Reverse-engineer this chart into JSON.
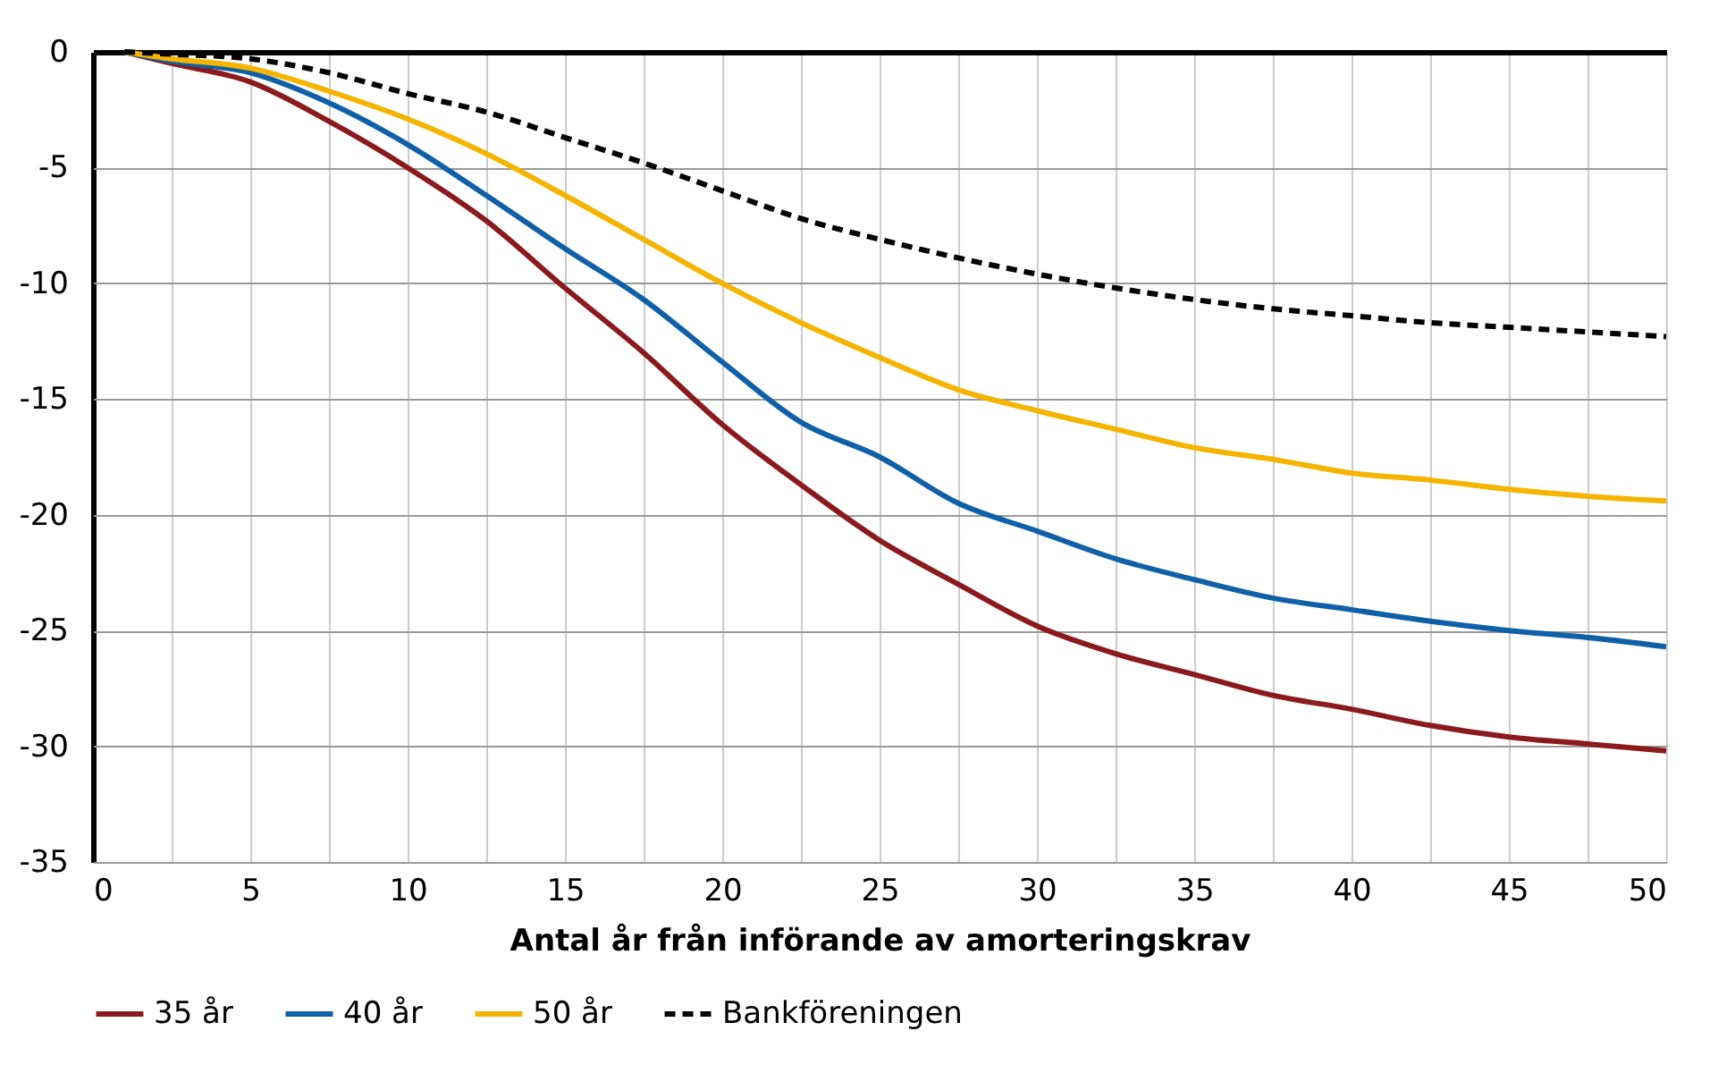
{
  "chart_data": {
    "type": "line",
    "xlabel": "Antal år från införande av amorteringskrav",
    "x": [
      1,
      2.5,
      5,
      7.5,
      10,
      12.5,
      15,
      17.5,
      20,
      22.5,
      25,
      27.5,
      30,
      32.5,
      35,
      37.5,
      40,
      42.5,
      45,
      47.5,
      50
    ],
    "series": [
      {
        "name": "35 år",
        "color": "#8b1a1f",
        "line_style": "solid",
        "values": [
          0,
          -0.5,
          -1.3,
          -3.0,
          -5.0,
          -7.3,
          -10.2,
          -13.0,
          -16.1,
          -18.7,
          -21.1,
          -23.0,
          -24.8,
          -26.0,
          -26.9,
          -27.8,
          -28.4,
          -29.1,
          -29.6,
          -29.9,
          -30.2
        ]
      },
      {
        "name": "40 år",
        "color": "#1060a8",
        "line_style": "solid",
        "values": [
          0,
          -0.4,
          -0.9,
          -2.2,
          -4.0,
          -6.2,
          -8.5,
          -10.7,
          -13.4,
          -16.0,
          -17.5,
          -19.5,
          -20.7,
          -21.9,
          -22.8,
          -23.6,
          -24.1,
          -24.6,
          -25.0,
          -25.3,
          -25.7
        ]
      },
      {
        "name": "50 år",
        "color": "#f4b400",
        "line_style": "solid",
        "values": [
          0,
          -0.3,
          -0.7,
          -1.7,
          -2.9,
          -4.4,
          -6.2,
          -8.1,
          -10.0,
          -11.7,
          -13.2,
          -14.6,
          -15.5,
          -16.3,
          -17.1,
          -17.6,
          -18.2,
          -18.5,
          -18.9,
          -19.2,
          -19.4
        ]
      },
      {
        "name": "Bankföreningen",
        "color": "#000000",
        "line_style": "dashed",
        "values": [
          0,
          -0.1,
          -0.3,
          -0.9,
          -1.8,
          -2.6,
          -3.7,
          -4.8,
          -6.0,
          -7.2,
          -8.1,
          -8.9,
          -9.6,
          -10.2,
          -10.7,
          -11.1,
          -11.4,
          -11.7,
          -11.9,
          -12.1,
          -12.3
        ]
      }
    ],
    "xlim": [
      0,
      50
    ],
    "ylim": [
      -35,
      0
    ],
    "xticks": [
      0,
      {
        "value": 2.5,
        "label": null
      },
      5,
      {
        "value": 7.5,
        "label": null
      },
      10,
      {
        "value": 12.5,
        "label": null
      },
      15,
      {
        "value": 17.5,
        "label": null
      },
      20,
      {
        "value": 22.5,
        "label": null
      },
      25,
      {
        "value": 27.5,
        "label": null
      },
      30,
      {
        "value": 32.5,
        "label": null
      },
      35,
      {
        "value": 37.5,
        "label": null
      },
      40,
      {
        "value": 42.5,
        "label": null
      },
      45,
      {
        "value": 47.5,
        "label": null
      },
      50
    ],
    "yticks": [
      0,
      -5,
      -10,
      -15,
      -20,
      -25,
      -30,
      -35
    ],
    "grid": true,
    "legend": "bottom"
  }
}
